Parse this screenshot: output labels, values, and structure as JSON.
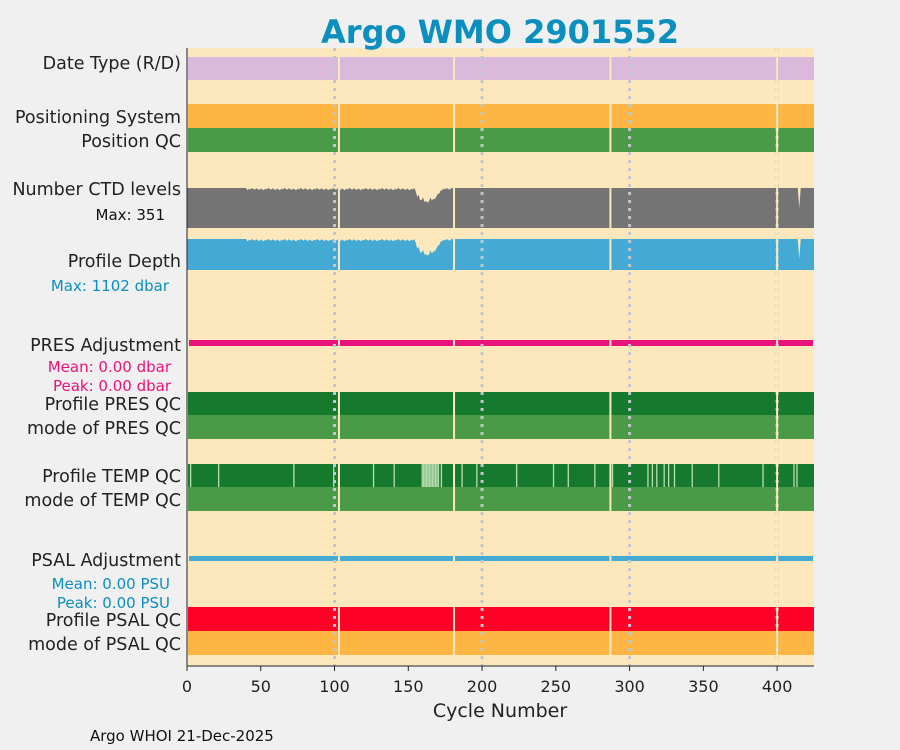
{
  "colors": {
    "figure_bg": "#f0f0f0",
    "axes_bg": "#fde8bd",
    "title": "#0b8fbf",
    "date_type": "#dab9dc",
    "positioning": "#fdb643",
    "qc_green": "#4a9a48",
    "qc_dark_green": "#157a2e",
    "qc_light": "#b6dcae",
    "ctd_gray": "#747474",
    "depth_blue": "#44aad4",
    "pres_pink": "#e8137c",
    "psal_blue": "#44aad4",
    "psal_qc_red": "#ff0026",
    "psal_mode_orange": "#fdb643",
    "grid": "#c3c6cc",
    "gap_line": "#fde8bd",
    "text": "#222222"
  },
  "chart_data": {
    "type": "bar",
    "title": "Argo WMO 2901552",
    "xlabel": "Cycle Number",
    "xlim": [
      0,
      425
    ],
    "xticks": [
      0,
      50,
      100,
      150,
      200,
      250,
      300,
      350,
      400
    ],
    "grid_cycles": [
      100,
      200,
      300,
      400
    ],
    "gap_cycles": [
      103,
      181,
      287,
      400
    ],
    "rows": [
      {
        "key": "date_type",
        "label": "Date Type (R/D)",
        "type": "band",
        "value_range": [
          0,
          425
        ]
      },
      {
        "key": "positioning",
        "label": "Positioning System",
        "type": "band",
        "value_range": [
          0,
          425
        ]
      },
      {
        "key": "position_qc",
        "label": "Position QC",
        "type": "band",
        "value_range": [
          0,
          425
        ]
      },
      {
        "key": "ctd_levels",
        "label": "Number CTD levels",
        "type": "profile",
        "note": "Max: 351",
        "max": 351
      },
      {
        "key": "profile_depth",
        "label": "Profile Depth",
        "type": "profile",
        "note": "Max: 1102 dbar",
        "max_dbar": 1102
      },
      {
        "key": "pres_adj",
        "label": "PRES Adjustment",
        "type": "adjustment",
        "mean_label": "Mean: 0.00 dbar",
        "peak_label": "Peak: 0.00 dbar",
        "mean": 0.0,
        "peak": 0.0
      },
      {
        "key": "pres_qc",
        "label": "Profile PRES QC",
        "type": "band",
        "flag": "A"
      },
      {
        "key": "pres_mode",
        "label": "mode of PRES QC",
        "type": "band",
        "flag": "1"
      },
      {
        "key": "temp_qc",
        "label": "Profile TEMP QC",
        "type": "band",
        "flag": "A",
        "light_cycles": [
          2,
          21,
          72,
          99,
          126,
          140,
          159,
          160,
          161,
          162,
          163,
          164,
          165,
          166,
          167,
          168,
          169,
          170,
          172,
          186,
          196,
          223,
          248,
          258,
          276,
          288,
          312,
          315,
          318,
          323,
          326,
          330,
          342,
          360,
          390,
          411,
          413
        ]
      },
      {
        "key": "temp_mode",
        "label": "mode of TEMP QC",
        "type": "band",
        "flag": "1"
      },
      {
        "key": "psal_adj",
        "label": "PSAL Adjustment",
        "type": "adjustment",
        "mean_label": "Mean: 0.00 PSU",
        "peak_label": "Peak: 0.00 PSU",
        "mean": 0.0,
        "peak": 0.0
      },
      {
        "key": "psal_qc",
        "label": "Profile PSAL QC",
        "type": "band",
        "flag": "F"
      },
      {
        "key": "psal_mode",
        "label": "mode of PSAL QC",
        "type": "band",
        "flag": "4"
      }
    ]
  },
  "footer": "Argo WHOI 21-Dec-2025"
}
